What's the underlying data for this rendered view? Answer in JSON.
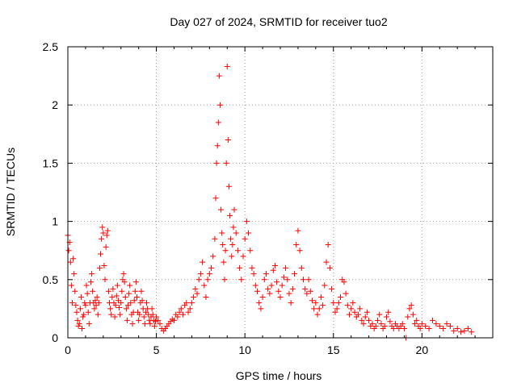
{
  "chart_data": {
    "type": "scatter",
    "title": "Day 027 of 2024, SRMTID for receiver tuo2",
    "xlabel": "GPS time / hours",
    "ylabel": "SRMTID / TECUs",
    "xlim": [
      0,
      24
    ],
    "ylim": [
      0,
      2.5
    ],
    "xticks": [
      0,
      5,
      10,
      15,
      20
    ],
    "xtick_labels": [
      "0",
      "5",
      "10",
      "15",
      "20"
    ],
    "yticks": [
      0,
      0.5,
      1,
      1.5,
      2,
      2.5
    ],
    "ytick_labels": [
      "0",
      "0.5",
      "1",
      "1.5",
      "2",
      "2.5"
    ],
    "grid": true,
    "marker": "+",
    "color": "#ff0000",
    "series": [
      {
        "name": "SRMTID",
        "points": [
          [
            0.0,
            0.88
          ],
          [
            0.05,
            0.75
          ],
          [
            0.1,
            0.82
          ],
          [
            0.15,
            0.65
          ],
          [
            0.2,
            0.45
          ],
          [
            0.25,
            0.3
          ],
          [
            0.3,
            0.68
          ],
          [
            0.35,
            0.55
          ],
          [
            0.4,
            0.4
          ],
          [
            0.45,
            0.28
          ],
          [
            0.5,
            0.22
          ],
          [
            0.55,
            0.15
          ],
          [
            0.6,
            0.1
          ],
          [
            0.65,
            0.12
          ],
          [
            0.7,
            0.25
          ],
          [
            0.75,
            0.35
          ],
          [
            0.8,
            0.08
          ],
          [
            0.85,
            0.18
          ],
          [
            0.9,
            0.2
          ],
          [
            0.95,
            0.3
          ],
          [
            1.0,
            0.28
          ],
          [
            1.05,
            0.45
          ],
          [
            1.1,
            0.38
          ],
          [
            1.15,
            0.22
          ],
          [
            1.2,
            0.12
          ],
          [
            1.25,
            0.3
          ],
          [
            1.3,
            0.48
          ],
          [
            1.35,
            0.55
          ],
          [
            1.4,
            0.4
          ],
          [
            1.45,
            0.3
          ],
          [
            1.5,
            0.25
          ],
          [
            1.55,
            0.32
          ],
          [
            1.6,
            0.28
          ],
          [
            1.65,
            0.35
          ],
          [
            1.7,
            0.2
          ],
          [
            1.75,
            0.3
          ],
          [
            1.8,
            0.6
          ],
          [
            1.85,
            0.72
          ],
          [
            1.9,
            0.85
          ],
          [
            1.95,
            0.95
          ],
          [
            2.0,
            0.9
          ],
          [
            2.05,
            0.62
          ],
          [
            2.1,
            0.5
          ],
          [
            2.15,
            0.78
          ],
          [
            2.2,
            0.88
          ],
          [
            2.25,
            0.92
          ],
          [
            2.3,
            0.4
          ],
          [
            2.35,
            0.3
          ],
          [
            2.4,
            0.25
          ],
          [
            2.45,
            0.2
          ],
          [
            2.5,
            0.35
          ],
          [
            2.55,
            0.42
          ],
          [
            2.6,
            0.3
          ],
          [
            2.65,
            0.18
          ],
          [
            2.7,
            0.28
          ],
          [
            2.75,
            0.36
          ],
          [
            2.8,
            0.45
          ],
          [
            2.85,
            0.32
          ],
          [
            2.9,
            0.26
          ],
          [
            2.95,
            0.2
          ],
          [
            3.0,
            0.3
          ],
          [
            3.05,
            0.4
          ],
          [
            3.1,
            0.5
          ],
          [
            3.15,
            0.55
          ],
          [
            3.2,
            0.48
          ],
          [
            3.25,
            0.35
          ],
          [
            3.3,
            0.25
          ],
          [
            3.35,
            0.15
          ],
          [
            3.4,
            0.28
          ],
          [
            3.45,
            0.38
          ],
          [
            3.5,
            0.45
          ],
          [
            3.55,
            0.3
          ],
          [
            3.6,
            0.2
          ],
          [
            3.65,
            0.12
          ],
          [
            3.7,
            0.22
          ],
          [
            3.75,
            0.32
          ],
          [
            3.8,
            0.4
          ],
          [
            3.85,
            0.48
          ],
          [
            3.9,
            0.35
          ],
          [
            3.95,
            0.22
          ],
          [
            4.0,
            0.15
          ],
          [
            4.05,
            0.2
          ],
          [
            4.1,
            0.3
          ],
          [
            4.15,
            0.4
          ],
          [
            4.2,
            0.32
          ],
          [
            4.25,
            0.25
          ],
          [
            4.3,
            0.18
          ],
          [
            4.35,
            0.12
          ],
          [
            4.4,
            0.22
          ],
          [
            4.45,
            0.3
          ],
          [
            4.5,
            0.25
          ],
          [
            4.55,
            0.2
          ],
          [
            4.6,
            0.15
          ],
          [
            4.65,
            0.12
          ],
          [
            4.7,
            0.18
          ],
          [
            4.75,
            0.25
          ],
          [
            4.8,
            0.2
          ],
          [
            4.85,
            0.15
          ],
          [
            4.9,
            0.1
          ],
          [
            4.95,
            0.14
          ],
          [
            5.0,
            0.18
          ],
          [
            5.1,
            0.15
          ],
          [
            5.2,
            0.12
          ],
          [
            5.3,
            0.08
          ],
          [
            5.4,
            0.06
          ],
          [
            5.5,
            0.08
          ],
          [
            5.6,
            0.1
          ],
          [
            5.7,
            0.12
          ],
          [
            5.8,
            0.14
          ],
          [
            5.9,
            0.16
          ],
          [
            6.0,
            0.15
          ],
          [
            6.1,
            0.2
          ],
          [
            6.2,
            0.18
          ],
          [
            6.3,
            0.22
          ],
          [
            6.4,
            0.25
          ],
          [
            6.5,
            0.2
          ],
          [
            6.6,
            0.28
          ],
          [
            6.7,
            0.3
          ],
          [
            6.8,
            0.22
          ],
          [
            6.9,
            0.25
          ],
          [
            7.0,
            0.3
          ],
          [
            7.1,
            0.35
          ],
          [
            7.2,
            0.42
          ],
          [
            7.3,
            0.38
          ],
          [
            7.4,
            0.5
          ],
          [
            7.5,
            0.55
          ],
          [
            7.6,
            0.65
          ],
          [
            7.7,
            0.45
          ],
          [
            7.8,
            0.35
          ],
          [
            7.9,
            0.5
          ],
          [
            8.0,
            0.55
          ],
          [
            8.1,
            0.6
          ],
          [
            8.2,
            0.7
          ],
          [
            8.3,
            0.85
          ],
          [
            8.35,
            1.2
          ],
          [
            8.4,
            1.5
          ],
          [
            8.45,
            1.65
          ],
          [
            8.5,
            1.85
          ],
          [
            8.55,
            2.25
          ],
          [
            8.6,
            2.0
          ],
          [
            8.65,
            1.1
          ],
          [
            8.7,
            0.9
          ],
          [
            8.75,
            0.8
          ],
          [
            8.8,
            0.65
          ],
          [
            8.85,
            0.5
          ],
          [
            8.9,
            0.75
          ],
          [
            8.95,
            1.5
          ],
          [
            9.0,
            2.33
          ],
          [
            9.05,
            1.7
          ],
          [
            9.1,
            1.3
          ],
          [
            9.15,
            1.05
          ],
          [
            9.2,
            0.85
          ],
          [
            9.25,
            0.7
          ],
          [
            9.3,
            0.8
          ],
          [
            9.35,
            0.95
          ],
          [
            9.4,
            1.1
          ],
          [
            9.5,
            0.9
          ],
          [
            9.6,
            0.75
          ],
          [
            9.7,
            0.6
          ],
          [
            9.8,
            0.5
          ],
          [
            9.9,
            0.7
          ],
          [
            10.0,
            0.85
          ],
          [
            10.1,
            1.0
          ],
          [
            10.2,
            0.9
          ],
          [
            10.3,
            0.75
          ],
          [
            10.4,
            0.6
          ],
          [
            10.5,
            0.55
          ],
          [
            10.6,
            0.45
          ],
          [
            10.7,
            0.4
          ],
          [
            10.8,
            0.3
          ],
          [
            10.9,
            0.25
          ],
          [
            11.0,
            0.35
          ],
          [
            11.1,
            0.5
          ],
          [
            11.2,
            0.55
          ],
          [
            11.3,
            0.42
          ],
          [
            11.4,
            0.38
          ],
          [
            11.5,
            0.45
          ],
          [
            11.6,
            0.58
          ],
          [
            11.7,
            0.62
          ],
          [
            11.8,
            0.48
          ],
          [
            11.9,
            0.4
          ],
          [
            12.0,
            0.35
          ],
          [
            12.1,
            0.45
          ],
          [
            12.2,
            0.52
          ],
          [
            12.3,
            0.6
          ],
          [
            12.4,
            0.5
          ],
          [
            12.5,
            0.38
          ],
          [
            12.6,
            0.3
          ],
          [
            12.7,
            0.42
          ],
          [
            12.8,
            0.55
          ],
          [
            12.9,
            0.8
          ],
          [
            13.0,
            0.92
          ],
          [
            13.1,
            0.75
          ],
          [
            13.2,
            0.6
          ],
          [
            13.3,
            0.5
          ],
          [
            13.4,
            0.42
          ],
          [
            13.5,
            0.38
          ],
          [
            13.6,
            0.5
          ],
          [
            13.7,
            0.4
          ],
          [
            13.8,
            0.32
          ],
          [
            13.9,
            0.25
          ],
          [
            14.0,
            0.3
          ],
          [
            14.1,
            0.2
          ],
          [
            14.2,
            0.25
          ],
          [
            14.3,
            0.35
          ],
          [
            14.4,
            0.28
          ],
          [
            14.5,
            0.45
          ],
          [
            14.6,
            0.65
          ],
          [
            14.7,
            0.8
          ],
          [
            14.8,
            0.6
          ],
          [
            14.9,
            0.42
          ],
          [
            15.0,
            0.3
          ],
          [
            15.1,
            0.22
          ],
          [
            15.2,
            0.25
          ],
          [
            15.3,
            0.3
          ],
          [
            15.4,
            0.35
          ],
          [
            15.5,
            0.5
          ],
          [
            15.6,
            0.48
          ],
          [
            15.7,
            0.38
          ],
          [
            15.8,
            0.28
          ],
          [
            15.9,
            0.2
          ],
          [
            16.0,
            0.25
          ],
          [
            16.1,
            0.3
          ],
          [
            16.2,
            0.22
          ],
          [
            16.3,
            0.18
          ],
          [
            16.4,
            0.2
          ],
          [
            16.5,
            0.25
          ],
          [
            16.6,
            0.15
          ],
          [
            16.7,
            0.12
          ],
          [
            16.8,
            0.18
          ],
          [
            16.9,
            0.22
          ],
          [
            17.0,
            0.15
          ],
          [
            17.1,
            0.1
          ],
          [
            17.2,
            0.12
          ],
          [
            17.3,
            0.08
          ],
          [
            17.4,
            0.1
          ],
          [
            17.5,
            0.15
          ],
          [
            17.6,
            0.2
          ],
          [
            17.7,
            0.12
          ],
          [
            17.8,
            0.08
          ],
          [
            17.9,
            0.1
          ],
          [
            18.0,
            0.18
          ],
          [
            18.1,
            0.22
          ],
          [
            18.2,
            0.14
          ],
          [
            18.3,
            0.1
          ],
          [
            18.4,
            0.08
          ],
          [
            18.5,
            0.12
          ],
          [
            18.6,
            0.1
          ],
          [
            18.7,
            0.08
          ],
          [
            18.8,
            0.1
          ],
          [
            18.9,
            0.12
          ],
          [
            19.0,
            0.08
          ],
          [
            19.1,
            0.0
          ],
          [
            19.2,
            0.18
          ],
          [
            19.3,
            0.25
          ],
          [
            19.4,
            0.28
          ],
          [
            19.5,
            0.2
          ],
          [
            19.6,
            0.12
          ],
          [
            19.7,
            0.15
          ],
          [
            19.8,
            0.1
          ],
          [
            19.9,
            0.08
          ],
          [
            20.0,
            0.12
          ],
          [
            20.2,
            0.1
          ],
          [
            20.4,
            0.08
          ],
          [
            20.6,
            0.15
          ],
          [
            20.8,
            0.12
          ],
          [
            21.0,
            0.1
          ],
          [
            21.2,
            0.08
          ],
          [
            21.4,
            0.12
          ],
          [
            21.6,
            0.1
          ],
          [
            21.8,
            0.06
          ],
          [
            22.0,
            0.08
          ],
          [
            22.2,
            0.05
          ],
          [
            22.4,
            0.06
          ],
          [
            22.6,
            0.08
          ],
          [
            22.8,
            0.05
          ]
        ]
      }
    ]
  }
}
